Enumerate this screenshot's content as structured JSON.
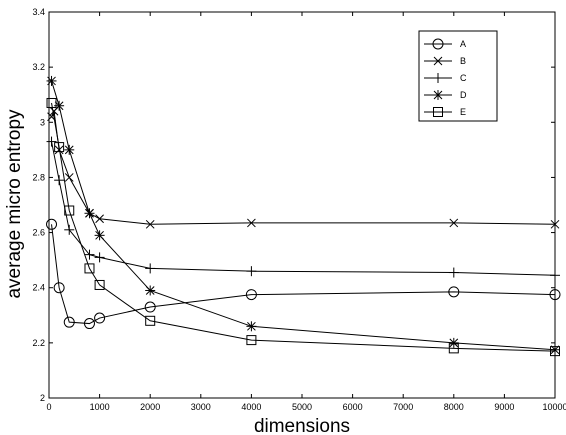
{
  "chart_data": {
    "type": "line",
    "xlabel": "dimensions",
    "ylabel": "average micro entropy",
    "xlim": [
      0,
      10000
    ],
    "ylim": [
      2,
      3.4
    ],
    "x_ticks": [
      0,
      1000,
      2000,
      3000,
      4000,
      5000,
      6000,
      7000,
      8000,
      9000,
      10000
    ],
    "y_ticks": [
      2,
      2.2,
      2.4,
      2.6,
      2.8,
      3,
      3.2,
      3.4
    ],
    "x_tick_labels": [
      "0",
      "1000",
      "2000",
      "3000",
      "4000",
      "5000",
      "6000",
      "7000",
      "8000",
      "9000",
      "10000"
    ],
    "y_tick_labels": [
      "2",
      "2.2",
      "2.4",
      "2.6",
      "2.8",
      "3",
      "3.2",
      "3.4"
    ],
    "grid": false,
    "legend_position": "top-right",
    "line_color": "#000000",
    "series": [
      {
        "name": "A",
        "marker": "circle",
        "x": [
          50,
          200,
          400,
          800,
          1000,
          2000,
          4000,
          8000,
          10000
        ],
        "y": [
          2.63,
          2.4,
          2.275,
          2.27,
          2.29,
          2.33,
          2.375,
          2.385,
          2.375
        ]
      },
      {
        "name": "B",
        "marker": "x",
        "x": [
          50,
          100,
          200,
          400,
          800,
          1000,
          2000,
          4000,
          8000,
          10000
        ],
        "y": [
          3.02,
          3.04,
          2.9,
          2.8,
          2.67,
          2.65,
          2.63,
          2.635,
          2.635,
          2.63
        ]
      },
      {
        "name": "C",
        "marker": "plus",
        "x": [
          50,
          200,
          400,
          800,
          1000,
          2000,
          4000,
          8000,
          10000
        ],
        "y": [
          2.93,
          2.79,
          2.61,
          2.52,
          2.51,
          2.47,
          2.46,
          2.455,
          2.445
        ]
      },
      {
        "name": "D",
        "marker": "star",
        "x": [
          50,
          200,
          400,
          800,
          1000,
          2000,
          4000,
          8000,
          10000
        ],
        "y": [
          3.15,
          3.06,
          2.9,
          2.67,
          2.59,
          2.39,
          2.26,
          2.2,
          2.175
        ]
      },
      {
        "name": "E",
        "marker": "square",
        "x": [
          50,
          200,
          400,
          800,
          1000,
          2000,
          4000,
          8000,
          10000
        ],
        "y": [
          3.07,
          2.91,
          2.68,
          2.47,
          2.41,
          2.28,
          2.21,
          2.18,
          2.17
        ]
      }
    ]
  }
}
